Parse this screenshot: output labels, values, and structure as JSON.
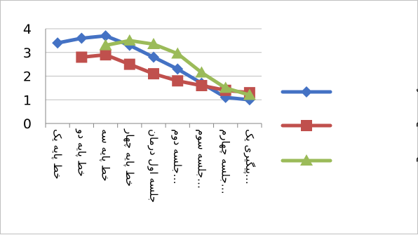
{
  "chart_data": {
    "type": "line",
    "categories": [
      "خط پایه یک",
      "خط پایه دو",
      "خط پایه سه",
      "خط پایه چهار",
      "جلسه اول درمان",
      "جلسه دوم…",
      "جلسه سوم…",
      "جلسه چهارم…",
      "پیگیری یک…"
    ],
    "series": [
      {
        "name": "آزمودنی اول",
        "color": "#4472C4",
        "marker": "diamond",
        "values": [
          3.4,
          3.6,
          3.7,
          3.3,
          2.8,
          2.3,
          1.7,
          1.1,
          1.0
        ]
      },
      {
        "name": "آزمودنی دوم",
        "color": "#C0504D",
        "marker": "square",
        "values": [
          null,
          2.8,
          2.9,
          2.5,
          2.1,
          1.8,
          1.6,
          1.4,
          1.3
        ]
      },
      {
        "name": "آزمودنی سوم",
        "color": "#9BBB59",
        "marker": "triangle",
        "values": [
          null,
          null,
          3.3,
          3.5,
          3.35,
          2.95,
          2.15,
          1.5,
          1.2
        ]
      }
    ],
    "ylim": [
      0,
      4
    ],
    "yticks": [
      0,
      1,
      2,
      3,
      4
    ],
    "grid": true,
    "legend": "right",
    "title": "",
    "xlabel": "",
    "ylabel": ""
  }
}
